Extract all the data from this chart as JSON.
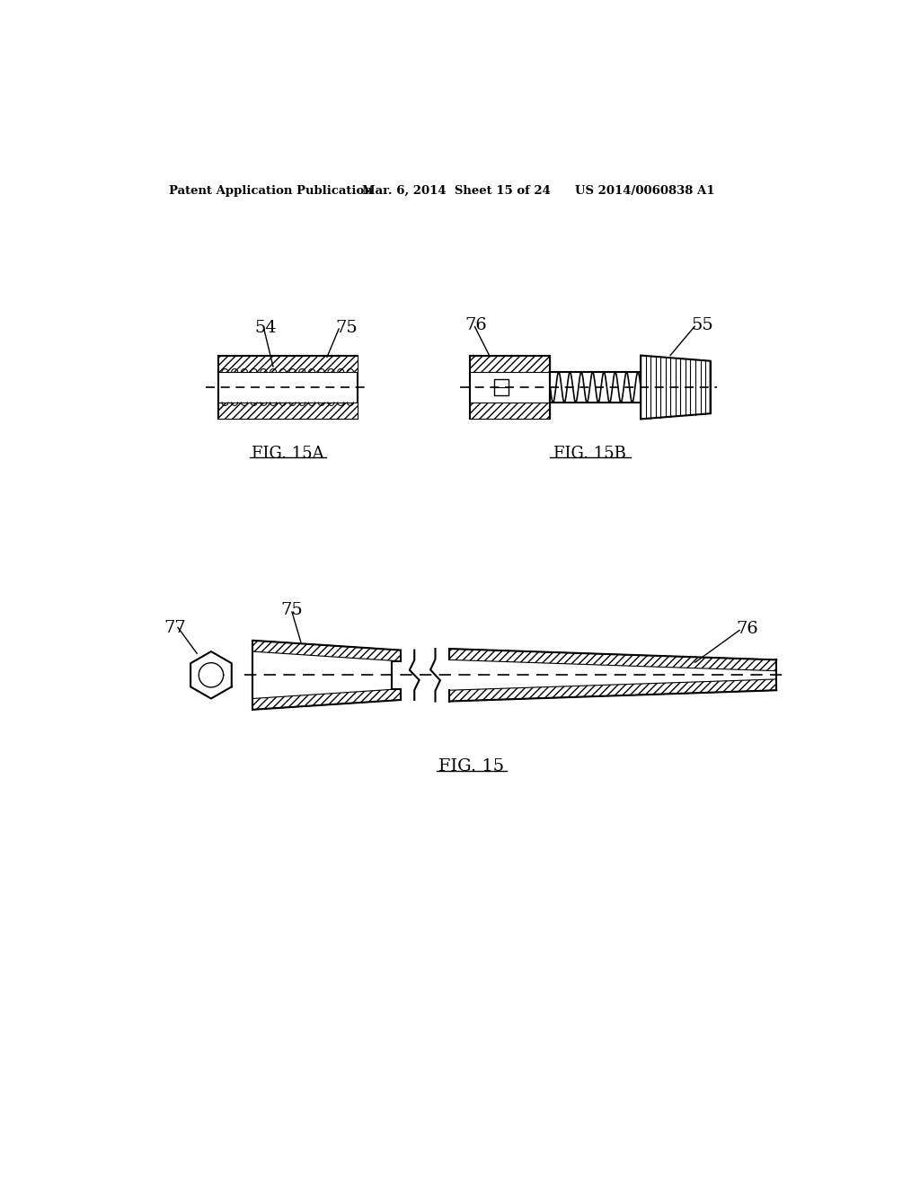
{
  "bg_color": "#ffffff",
  "text_color": "#000000",
  "header_left": "Patent Application Publication",
  "header_center": "Mar. 6, 2014  Sheet 15 of 24",
  "header_right": "US 2014/0060838 A1",
  "fig15a_label": "FIG. 15A",
  "fig15b_label": "FIG. 15B",
  "fig15_label": "FIG. 15",
  "label_54": "54",
  "label_75a": "75",
  "label_76b": "76",
  "label_55": "55",
  "label_77": "77",
  "label_75": "75",
  "label_76": "76"
}
